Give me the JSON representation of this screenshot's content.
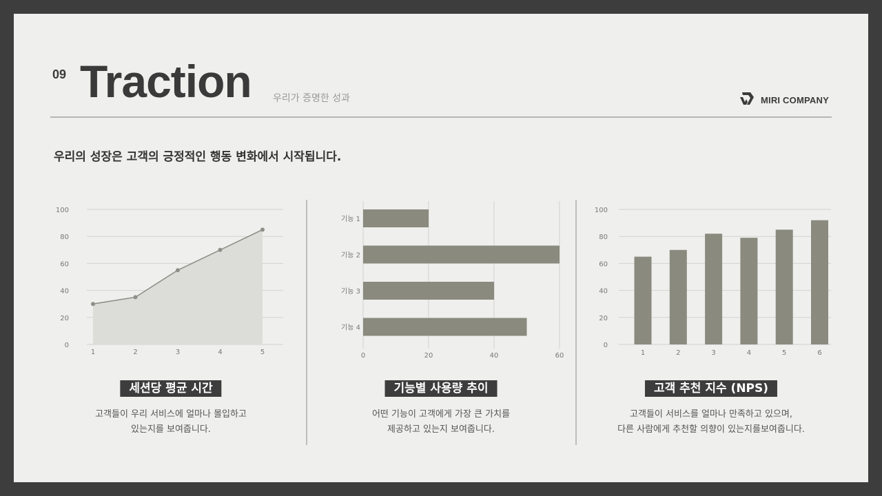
{
  "header": {
    "section_number": "09",
    "title": "Traction",
    "subtitle": "우리가 증명한 성과",
    "brand": {
      "name": "MIRI COMPANY",
      "icon": "miri-logo-icon"
    }
  },
  "lead_text": "우리의 성장은 고객의 긍정적인 행동 변화에서 시작됩니다.",
  "colors": {
    "frame": "#3d3d3d",
    "background": "#efefed",
    "bar": "#8a8a7f",
    "area_fill": "#dcdcd8",
    "line": "#8f8f88",
    "pill_bg": "#3d3d3d"
  },
  "panels": [
    {
      "label": "세션당 평균 시간",
      "desc_line1": "고객들이 우리 서비스에 얼마나 몰입하고",
      "desc_line2": "있는지를 보여줍니다."
    },
    {
      "label": "기능별 사용량 추이",
      "desc_line1": "어떤 기능이 고객에게 가장 큰 가치를",
      "desc_line2": "제공하고 있는지 보여줍니다."
    },
    {
      "label": "고객 추천 지수 (NPS)",
      "desc_line1": "고객들이 서비스를 얼마나 만족하고 있으며,",
      "desc_line2": "다른 사람에게 추천할 의향이 있는지를보여줍니다."
    }
  ],
  "chart_data": [
    {
      "type": "area",
      "title": "세션당 평균 시간",
      "categories": [
        "1",
        "2",
        "3",
        "4",
        "5"
      ],
      "values": [
        30,
        35,
        55,
        70,
        85
      ],
      "xlabel": "",
      "ylabel": "",
      "ylim": [
        0,
        100
      ],
      "yticks": [
        "0",
        "20",
        "40",
        "60",
        "80",
        "100"
      ],
      "grid": true,
      "legend": "none"
    },
    {
      "type": "bar",
      "orientation": "horizontal",
      "title": "기능별 사용량 추이",
      "categories": [
        "기능 1",
        "기능 2",
        "기능 3",
        "기능 4"
      ],
      "values": [
        20,
        60,
        40,
        50
      ],
      "xlabel": "",
      "ylabel": "",
      "xlim": [
        0,
        60
      ],
      "xticks": [
        "0",
        "20",
        "40",
        "60"
      ],
      "grid": true,
      "legend": "none"
    },
    {
      "type": "bar",
      "title": "고객 추천 지수 (NPS)",
      "categories": [
        "1",
        "2",
        "3",
        "4",
        "5",
        "6"
      ],
      "values": [
        65,
        70,
        82,
        79,
        85,
        92
      ],
      "xlabel": "",
      "ylabel": "",
      "ylim": [
        0,
        100
      ],
      "yticks": [
        "0",
        "20",
        "40",
        "60",
        "80",
        "100"
      ],
      "grid": true,
      "legend": "none"
    }
  ]
}
